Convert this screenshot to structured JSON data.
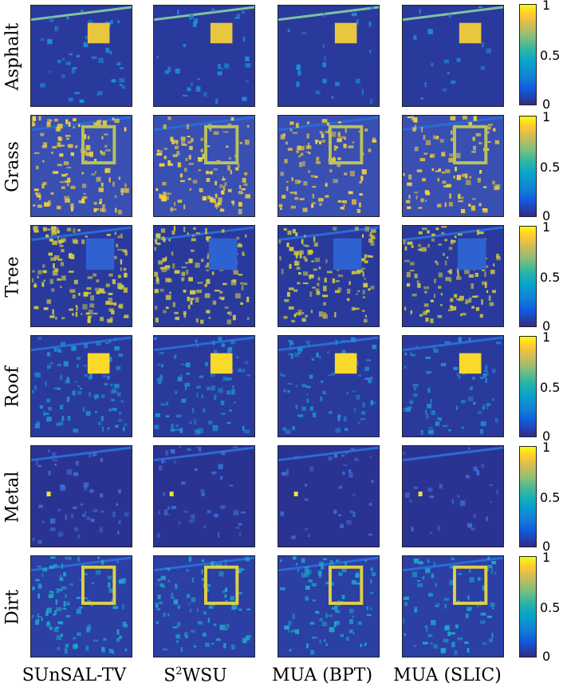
{
  "figure": {
    "rows": [
      {
        "label": "Asphalt"
      },
      {
        "label": "Grass"
      },
      {
        "label": "Tree"
      },
      {
        "label": "Roof"
      },
      {
        "label": "Metal"
      },
      {
        "label": "Dirt"
      }
    ],
    "columns": [
      {
        "label": "SUnSAL-TV"
      },
      {
        "label_pre": "S",
        "label_sup": "2",
        "label_post": "WSU"
      },
      {
        "label": "MUA (BPT)"
      },
      {
        "label": "MUA (SLIC)"
      }
    ],
    "colorbar": {
      "ticks": [
        "1",
        "0.5",
        "0"
      ],
      "colors": {
        "low": "#352a87",
        "mid": "#06a4ca",
        "high": "#f9fb0e"
      }
    }
  }
}
